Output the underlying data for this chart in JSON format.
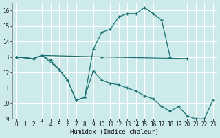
{
  "xlabel": "Humidex (Indice chaleur)",
  "bg_color": "#cceaea",
  "grid_color": "#ffffff",
  "line_color": "#1a7070",
  "x_min": -0.5,
  "x_max": 23.5,
  "y_min": 9,
  "y_max": 16.5,
  "yticks": [
    9,
    10,
    11,
    12,
    13,
    14,
    15,
    16
  ],
  "xticks": [
    0,
    1,
    2,
    3,
    4,
    5,
    6,
    7,
    8,
    9,
    10,
    11,
    12,
    13,
    14,
    15,
    16,
    17,
    18,
    19,
    20,
    21,
    22,
    23
  ],
  "line1_x": [
    0,
    2,
    3,
    4,
    5,
    6,
    7,
    8,
    9,
    10,
    11,
    12,
    13,
    14,
    15,
    16,
    17,
    18
  ],
  "line1_y": [
    13.0,
    12.9,
    13.1,
    12.8,
    12.2,
    11.5,
    10.2,
    10.4,
    13.5,
    14.6,
    14.8,
    15.6,
    15.8,
    15.8,
    16.2,
    15.8,
    15.4,
    13.0
  ],
  "line2_x": [
    0,
    2,
    3,
    10,
    20
  ],
  "line2_y": [
    13.0,
    12.9,
    13.1,
    13.0,
    12.9
  ],
  "line3_x": [
    0,
    2,
    3,
    5,
    6,
    7,
    8,
    9,
    10,
    11,
    12,
    13,
    14,
    15,
    16,
    17,
    18,
    19,
    20,
    21,
    22,
    23
  ],
  "line3_y": [
    13.0,
    12.9,
    13.1,
    12.2,
    11.5,
    10.2,
    10.4,
    12.1,
    11.5,
    11.3,
    11.2,
    11.0,
    10.8,
    10.5,
    10.3,
    9.8,
    9.5,
    9.8,
    9.2,
    9.0,
    9.0,
    10.2
  ]
}
